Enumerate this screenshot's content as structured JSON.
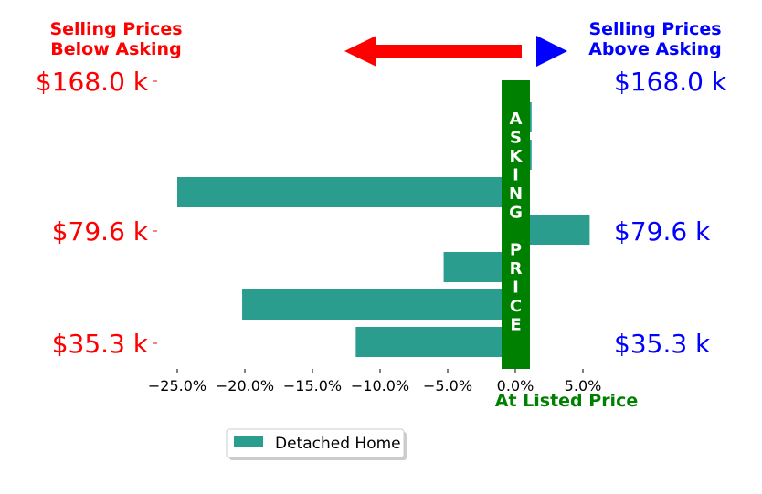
{
  "header": {
    "left_line1": "Selling Prices",
    "left_line2": "Below Asking",
    "right_line1": "Selling Prices",
    "right_line2": "Above Asking"
  },
  "center_label": "ASKING PRICE",
  "center_letters": [
    "A",
    "S",
    "K",
    "I",
    "N",
    "G",
    "",
    "P",
    "R",
    "I",
    "C",
    "E"
  ],
  "bottom_label": "At Listed Price",
  "price_labels_left": [
    "$168.0 k",
    "$79.6 k",
    "$35.3 k"
  ],
  "price_labels_right": [
    "$168.0 k",
    "$79.6 k",
    "$35.3 k"
  ],
  "legend": {
    "label": "Detached Home"
  },
  "colors": {
    "below": "#ff0000",
    "above": "#0000ff",
    "asking_band": "#008000",
    "bar": "#2a9d8f"
  },
  "chart_data": {
    "type": "bar",
    "orientation": "horizontal",
    "x_ticks": [
      "−25.0%",
      "−20.0%",
      "−15.0%",
      "−10.0%",
      "−5.0%",
      "0.0%",
      "5.0%"
    ],
    "x_tick_values": [
      -25,
      -20,
      -15,
      -10,
      -5,
      0,
      5
    ],
    "xlim": [
      -27.5,
      7
    ],
    "series": [
      {
        "name": "Detached Home",
        "values": [
          1.2,
          1.2,
          -25.0,
          5.5,
          -5.3,
          -20.2,
          -11.8
        ]
      }
    ]
  }
}
